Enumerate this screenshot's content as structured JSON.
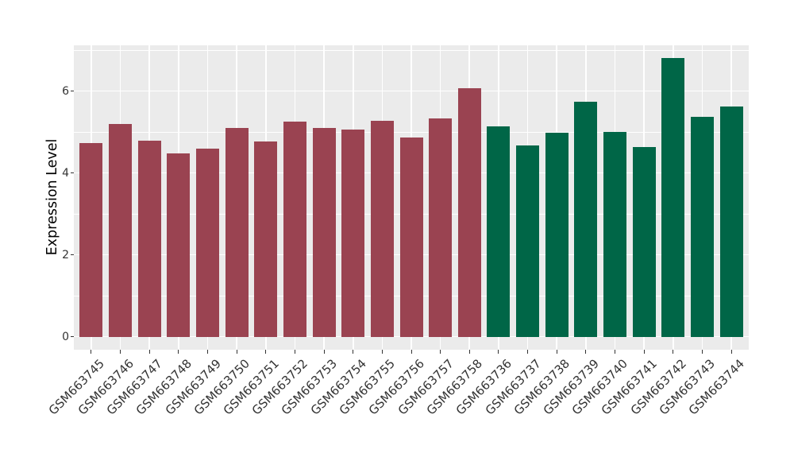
{
  "chart_data": {
    "type": "bar",
    "title": "",
    "xlabel": "",
    "ylabel": "Expression Level",
    "categories": [
      "GSM663745",
      "GSM663746",
      "GSM663747",
      "GSM663748",
      "GSM663749",
      "GSM663750",
      "GSM663751",
      "GSM663752",
      "GSM663753",
      "GSM663754",
      "GSM663755",
      "GSM663756",
      "GSM663757",
      "GSM663758",
      "GSM663736",
      "GSM663737",
      "GSM663738",
      "GSM663739",
      "GSM663740",
      "GSM663741",
      "GSM663742",
      "GSM663743",
      "GSM663744"
    ],
    "values": [
      4.74,
      5.19,
      4.79,
      4.48,
      4.59,
      5.1,
      4.77,
      5.26,
      5.1,
      5.06,
      5.28,
      4.86,
      5.34,
      6.08,
      5.14,
      4.68,
      4.98,
      5.74,
      5.01,
      4.64,
      6.8,
      5.38,
      5.63
    ],
    "groups": [
      "group1",
      "group1",
      "group1",
      "group1",
      "group1",
      "group1",
      "group1",
      "group1",
      "group1",
      "group1",
      "group1",
      "group1",
      "group1",
      "group1",
      "group2",
      "group2",
      "group2",
      "group2",
      "group2",
      "group2",
      "group2",
      "group2",
      "group2"
    ],
    "group_colors": {
      "group1": "#9A4351",
      "group2": "#006647"
    },
    "y_ticks": [
      0,
      2,
      4,
      6
    ],
    "y_minor_ticks": [
      1,
      3,
      5,
      7
    ],
    "axis_range": [
      -0.32,
      7.12
    ],
    "x_tick_angle_deg": 45,
    "grid": true,
    "legend": "none",
    "panel_background": "#EBEBEB",
    "gridline_color": "#FFFFFF",
    "axis_text_color": "#333333"
  }
}
